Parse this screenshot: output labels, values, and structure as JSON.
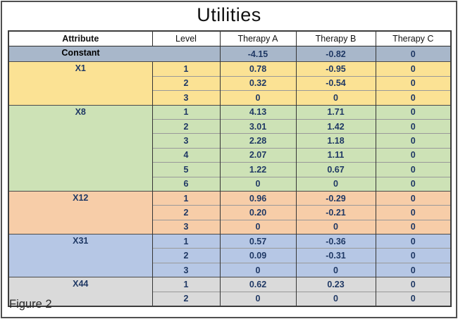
{
  "figure": {
    "title": "Utilities",
    "caption": "Figure 2"
  },
  "colors": {
    "constant_row": "#a8b7ca",
    "x1": "#fbe294",
    "x8": "#cde2b6",
    "x12": "#f7cda8",
    "x31": "#b6c7e5",
    "x44": "#dadada",
    "value_text": "#1f3864",
    "constant_label_text": "#000000",
    "attribute_label_text": "#1f3864",
    "header_text": "#111111"
  },
  "table": {
    "headers": [
      "Attribute",
      "Level",
      "Therapy A",
      "Therapy B",
      "Therapy C"
    ],
    "groups": [
      {
        "attribute": "Constant",
        "color_key": "constant_row",
        "merged_level": true,
        "label_color_key": "constant_label_text",
        "rows": [
          {
            "level": "",
            "therapy_a": "-4.15",
            "therapy_b": "-0.82",
            "therapy_c": "0"
          }
        ]
      },
      {
        "attribute": "X1",
        "color_key": "x1",
        "merged_level": false,
        "label_color_key": "attribute_label_text",
        "rows": [
          {
            "level": "1",
            "therapy_a": "0.78",
            "therapy_b": "-0.95",
            "therapy_c": "0"
          },
          {
            "level": "2",
            "therapy_a": "0.32",
            "therapy_b": "-0.54",
            "therapy_c": "0"
          },
          {
            "level": "3",
            "therapy_a": "0",
            "therapy_b": "0",
            "therapy_c": "0"
          }
        ]
      },
      {
        "attribute": "X8",
        "color_key": "x8",
        "merged_level": false,
        "label_color_key": "attribute_label_text",
        "rows": [
          {
            "level": "1",
            "therapy_a": "4.13",
            "therapy_b": "1.71",
            "therapy_c": "0"
          },
          {
            "level": "2",
            "therapy_a": "3.01",
            "therapy_b": "1.42",
            "therapy_c": "0"
          },
          {
            "level": "3",
            "therapy_a": "2.28",
            "therapy_b": "1.18",
            "therapy_c": "0"
          },
          {
            "level": "4",
            "therapy_a": "2.07",
            "therapy_b": "1.11",
            "therapy_c": "0"
          },
          {
            "level": "5",
            "therapy_a": "1.22",
            "therapy_b": "0.67",
            "therapy_c": "0"
          },
          {
            "level": "6",
            "therapy_a": "0",
            "therapy_b": "0",
            "therapy_c": "0"
          }
        ]
      },
      {
        "attribute": "X12",
        "color_key": "x12",
        "merged_level": false,
        "label_color_key": "attribute_label_text",
        "rows": [
          {
            "level": "1",
            "therapy_a": "0.96",
            "therapy_b": "-0.29",
            "therapy_c": "0"
          },
          {
            "level": "2",
            "therapy_a": "0.20",
            "therapy_b": "-0.21",
            "therapy_c": "0"
          },
          {
            "level": "3",
            "therapy_a": "0",
            "therapy_b": "0",
            "therapy_c": "0"
          }
        ]
      },
      {
        "attribute": "X31",
        "color_key": "x31",
        "merged_level": false,
        "label_color_key": "attribute_label_text",
        "rows": [
          {
            "level": "1",
            "therapy_a": "0.57",
            "therapy_b": "-0.36",
            "therapy_c": "0"
          },
          {
            "level": "2",
            "therapy_a": "0.09",
            "therapy_b": "-0.31",
            "therapy_c": "0"
          },
          {
            "level": "3",
            "therapy_a": "0",
            "therapy_b": "0",
            "therapy_c": "0"
          }
        ]
      },
      {
        "attribute": "X44",
        "color_key": "x44",
        "merged_level": false,
        "label_color_key": "attribute_label_text",
        "rows": [
          {
            "level": "1",
            "therapy_a": "0.62",
            "therapy_b": "0.23",
            "therapy_c": "0"
          },
          {
            "level": "2",
            "therapy_a": "0",
            "therapy_b": "0",
            "therapy_c": "0"
          }
        ]
      }
    ]
  }
}
